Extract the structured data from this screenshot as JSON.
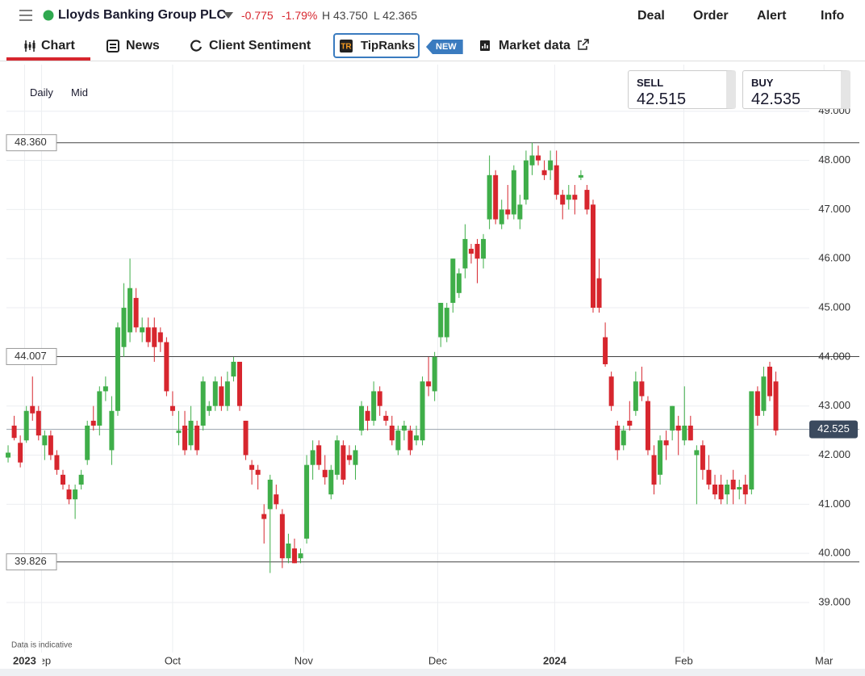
{
  "header": {
    "title": "Lloyds Banking Group PLC",
    "change": "-0.775",
    "change_pct": "-1.79%",
    "high": "H 43.750",
    "low": "L 42.365",
    "actions": [
      "Deal",
      "Order",
      "Alert",
      "Info"
    ]
  },
  "tabs": [
    "Chart",
    "News",
    "Client Sentiment",
    "TipRanks",
    "NEW",
    "Market data"
  ],
  "controls": {
    "interval": "Daily",
    "price_type": "Mid"
  },
  "quote": {
    "sell_label": "SELL",
    "sell": "42.515",
    "buy_label": "BUY",
    "buy": "42.535"
  },
  "chart_data": {
    "type": "candlestick",
    "up_color": "#3fae49",
    "down_color": "#d7262e",
    "note": "Data is indicative",
    "ylim": [
      37.98,
      49.95
    ],
    "yticks": [
      {
        "value": 39,
        "label": "39.000"
      },
      {
        "value": 40,
        "label": "40.000"
      },
      {
        "value": 41,
        "label": "41.000"
      },
      {
        "value": 42,
        "label": "42.000"
      },
      {
        "value": 43,
        "label": "43.000"
      },
      {
        "value": 44,
        "label": "44.000"
      },
      {
        "value": 45,
        "label": "45.000"
      },
      {
        "value": 46,
        "label": "46.000"
      },
      {
        "value": 47,
        "label": "47.000"
      },
      {
        "value": 48,
        "label": "48.000"
      },
      {
        "value": 49,
        "label": "49.000"
      }
    ],
    "xlim": [
      -0.27,
      139.7
    ],
    "xticks": [
      {
        "value": 5.5,
        "label": "Sep"
      },
      {
        "value": 27,
        "label": "Oct"
      },
      {
        "value": 48.5,
        "label": "Nov"
      },
      {
        "value": 70.5,
        "label": "Dec"
      },
      {
        "value": 110.9,
        "label": "Feb"
      },
      {
        "value": 133.9,
        "label": "Mar"
      }
    ],
    "year_ticks": [
      {
        "value": 2.7,
        "label": "2023"
      },
      {
        "value": 89.7,
        "label": "2024"
      }
    ],
    "levels": [
      {
        "value": 48.36,
        "label": "48.360"
      },
      {
        "value": 44.007,
        "label": "44.007"
      },
      {
        "value": 39.826,
        "label": "39.826"
      }
    ],
    "last_price": {
      "value": 42.525,
      "label": "42.525"
    },
    "candles": [
      [
        41.95,
        42.2,
        41.85,
        42.05
      ],
      [
        42.6,
        42.8,
        42.3,
        42.35
      ],
      [
        42.25,
        42.4,
        41.75,
        41.85
      ],
      [
        42.3,
        43.0,
        42.25,
        42.9
      ],
      [
        43.0,
        43.6,
        42.7,
        42.85
      ],
      [
        42.9,
        43.0,
        42.3,
        42.4
      ],
      [
        42.2,
        42.5,
        41.9,
        42.4
      ],
      [
        42.4,
        42.5,
        41.9,
        42.0
      ],
      [
        42.0,
        42.1,
        41.6,
        41.7
      ],
      [
        41.6,
        41.7,
        41.3,
        41.4
      ],
      [
        41.3,
        41.4,
        41.0,
        41.1
      ],
      [
        41.1,
        41.4,
        40.7,
        41.3
      ],
      [
        41.4,
        41.7,
        41.3,
        41.6
      ],
      [
        41.9,
        42.7,
        41.8,
        42.6
      ],
      [
        42.7,
        43.0,
        42.5,
        42.6
      ],
      [
        42.6,
        43.4,
        42.4,
        43.3
      ],
      [
        43.3,
        43.6,
        43.1,
        43.4
      ],
      [
        42.1,
        43.2,
        41.8,
        42.9
      ],
      [
        42.9,
        44.7,
        42.8,
        44.6
      ],
      [
        44.2,
        45.5,
        44.0,
        45.0
      ],
      [
        44.5,
        46.0,
        44.3,
        45.4
      ],
      [
        45.2,
        45.4,
        44.5,
        44.6
      ],
      [
        44.5,
        44.8,
        44.3,
        44.6
      ],
      [
        44.6,
        44.8,
        44.2,
        44.3
      ],
      [
        44.6,
        44.8,
        43.9,
        44.2
      ],
      [
        44.5,
        44.6,
        44.1,
        44.3
      ],
      [
        44.3,
        44.4,
        43.2,
        43.3
      ],
      [
        43.0,
        43.3,
        42.8,
        42.9
      ],
      [
        42.45,
        42.9,
        42.2,
        42.5
      ],
      [
        42.6,
        42.9,
        42.0,
        42.1
      ],
      [
        42.2,
        43.0,
        42.1,
        42.7
      ],
      [
        42.6,
        42.7,
        42.0,
        42.1
      ],
      [
        42.6,
        43.6,
        42.5,
        43.5
      ],
      [
        42.9,
        43.1,
        42.8,
        43.0
      ],
      [
        43.0,
        43.6,
        42.9,
        43.5
      ],
      [
        43.4,
        43.6,
        42.9,
        43.0
      ],
      [
        43.0,
        43.7,
        42.9,
        43.5
      ],
      [
        43.6,
        44.0,
        43.5,
        43.9
      ],
      [
        43.9,
        43.9,
        42.9,
        43.0
      ],
      [
        42.7,
        42.7,
        41.9,
        42.0
      ],
      [
        41.8,
        41.9,
        41.4,
        41.7
      ],
      [
        41.7,
        41.8,
        41.3,
        41.6
      ],
      [
        40.8,
        41.0,
        40.2,
        40.7
      ],
      [
        40.9,
        41.6,
        39.6,
        41.5
      ],
      [
        41.2,
        41.4,
        40.9,
        41.0
      ],
      [
        40.8,
        40.9,
        39.7,
        39.9
      ],
      [
        39.9,
        40.4,
        39.8,
        40.2
      ],
      [
        40.1,
        40.3,
        39.8,
        39.8
      ],
      [
        39.9,
        40.1,
        39.8,
        40.0
      ],
      [
        40.3,
        42.0,
        40.2,
        41.8
      ],
      [
        41.8,
        42.3,
        41.5,
        42.1
      ],
      [
        42.2,
        42.3,
        41.7,
        41.8
      ],
      [
        41.7,
        42.0,
        41.4,
        41.55
      ],
      [
        41.2,
        41.8,
        41.1,
        41.7
      ],
      [
        41.6,
        42.4,
        41.5,
        42.3
      ],
      [
        42.2,
        42.3,
        41.4,
        41.5
      ],
      [
        42.0,
        42.2,
        41.8,
        41.9
      ],
      [
        41.8,
        42.2,
        41.5,
        42.1
      ],
      [
        42.5,
        43.1,
        42.4,
        43.0
      ],
      [
        42.9,
        43.0,
        42.5,
        42.7
      ],
      [
        42.7,
        43.5,
        42.6,
        43.3
      ],
      [
        43.3,
        43.4,
        42.8,
        43.0
      ],
      [
        42.8,
        42.9,
        42.6,
        42.7
      ],
      [
        42.6,
        42.8,
        42.2,
        42.3
      ],
      [
        42.1,
        42.6,
        42.0,
        42.5
      ],
      [
        42.5,
        42.7,
        42.3,
        42.6
      ],
      [
        42.5,
        42.6,
        42.0,
        42.1
      ],
      [
        42.3,
        42.6,
        42.2,
        42.4
      ],
      [
        42.3,
        43.6,
        42.2,
        43.5
      ],
      [
        43.5,
        44.0,
        43.2,
        43.4
      ],
      [
        43.3,
        44.1,
        43.1,
        44.0
      ],
      [
        44.4,
        45.1,
        44.2,
        45.1
      ],
      [
        44.4,
        45.1,
        44.3,
        45.0
      ],
      [
        45.1,
        46.0,
        44.9,
        46.0
      ],
      [
        45.3,
        45.8,
        45.2,
        45.7
      ],
      [
        45.8,
        46.7,
        45.6,
        46.4
      ],
      [
        46.2,
        46.3,
        45.9,
        46.1
      ],
      [
        46.3,
        46.4,
        45.5,
        46.0
      ],
      [
        46.0,
        46.5,
        45.8,
        46.4
      ],
      [
        46.8,
        48.1,
        46.6,
        47.7
      ],
      [
        47.7,
        47.8,
        46.7,
        46.8
      ],
      [
        46.7,
        47.2,
        46.6,
        47.0
      ],
      [
        47.0,
        47.5,
        46.8,
        46.9
      ],
      [
        46.9,
        47.9,
        46.8,
        47.8
      ],
      [
        46.8,
        47.3,
        46.6,
        47.1
      ],
      [
        47.2,
        48.2,
        47.1,
        48.0
      ],
      [
        47.9,
        48.36,
        47.7,
        48.1
      ],
      [
        48.1,
        48.3,
        47.9,
        48.0
      ],
      [
        47.8,
        48.0,
        47.6,
        47.7
      ],
      [
        47.8,
        48.2,
        47.6,
        48.0
      ],
      [
        47.9,
        48.2,
        47.2,
        47.3
      ],
      [
        47.3,
        47.4,
        46.8,
        47.1
      ],
      [
        47.2,
        47.5,
        47.0,
        47.3
      ],
      [
        47.3,
        47.5,
        46.9,
        47.2
      ],
      [
        47.65,
        47.8,
        47.6,
        47.7
      ],
      [
        47.4,
        47.5,
        46.9,
        47.0
      ],
      [
        47.1,
        47.2,
        44.9,
        45.0
      ],
      [
        45.6,
        46.0,
        44.9,
        45.0
      ],
      [
        44.4,
        44.7,
        43.8,
        43.85
      ],
      [
        43.6,
        43.7,
        42.9,
        43.0
      ],
      [
        42.6,
        42.7,
        41.9,
        42.1
      ],
      [
        42.2,
        42.6,
        42.1,
        42.5
      ],
      [
        42.7,
        43.1,
        42.5,
        42.6
      ],
      [
        42.9,
        43.7,
        42.8,
        43.5
      ],
      [
        43.5,
        43.8,
        43.1,
        43.2
      ],
      [
        43.1,
        43.2,
        42.0,
        42.1
      ],
      [
        42.0,
        42.2,
        41.2,
        41.4
      ],
      [
        41.6,
        42.4,
        41.4,
        42.3
      ],
      [
        42.3,
        42.5,
        41.9,
        42.2
      ],
      [
        42.5,
        43.0,
        42.3,
        43.0
      ],
      [
        42.6,
        42.8,
        42.0,
        42.5
      ],
      [
        42.3,
        43.4,
        42.2,
        42.6
      ],
      [
        42.6,
        42.8,
        42.3,
        42.3
      ],
      [
        42.0,
        42.2,
        41.0,
        42.1
      ],
      [
        42.2,
        42.3,
        41.5,
        41.7
      ],
      [
        41.7,
        42.0,
        41.3,
        41.4
      ],
      [
        41.4,
        41.6,
        41.1,
        41.2
      ],
      [
        41.4,
        41.6,
        41.0,
        41.1
      ],
      [
        41.2,
        41.5,
        41.0,
        41.4
      ],
      [
        41.5,
        41.7,
        41.0,
        41.3
      ],
      [
        41.3,
        41.5,
        41.1,
        41.35
      ],
      [
        41.4,
        41.6,
        41.0,
        41.2
      ],
      [
        41.3,
        43.3,
        41.2,
        43.3
      ],
      [
        43.3,
        43.4,
        42.6,
        42.8
      ],
      [
        42.9,
        43.8,
        42.8,
        43.6
      ],
      [
        43.8,
        43.9,
        43.1,
        43.2
      ],
      [
        43.5,
        43.7,
        42.4,
        42.5
      ]
    ]
  }
}
